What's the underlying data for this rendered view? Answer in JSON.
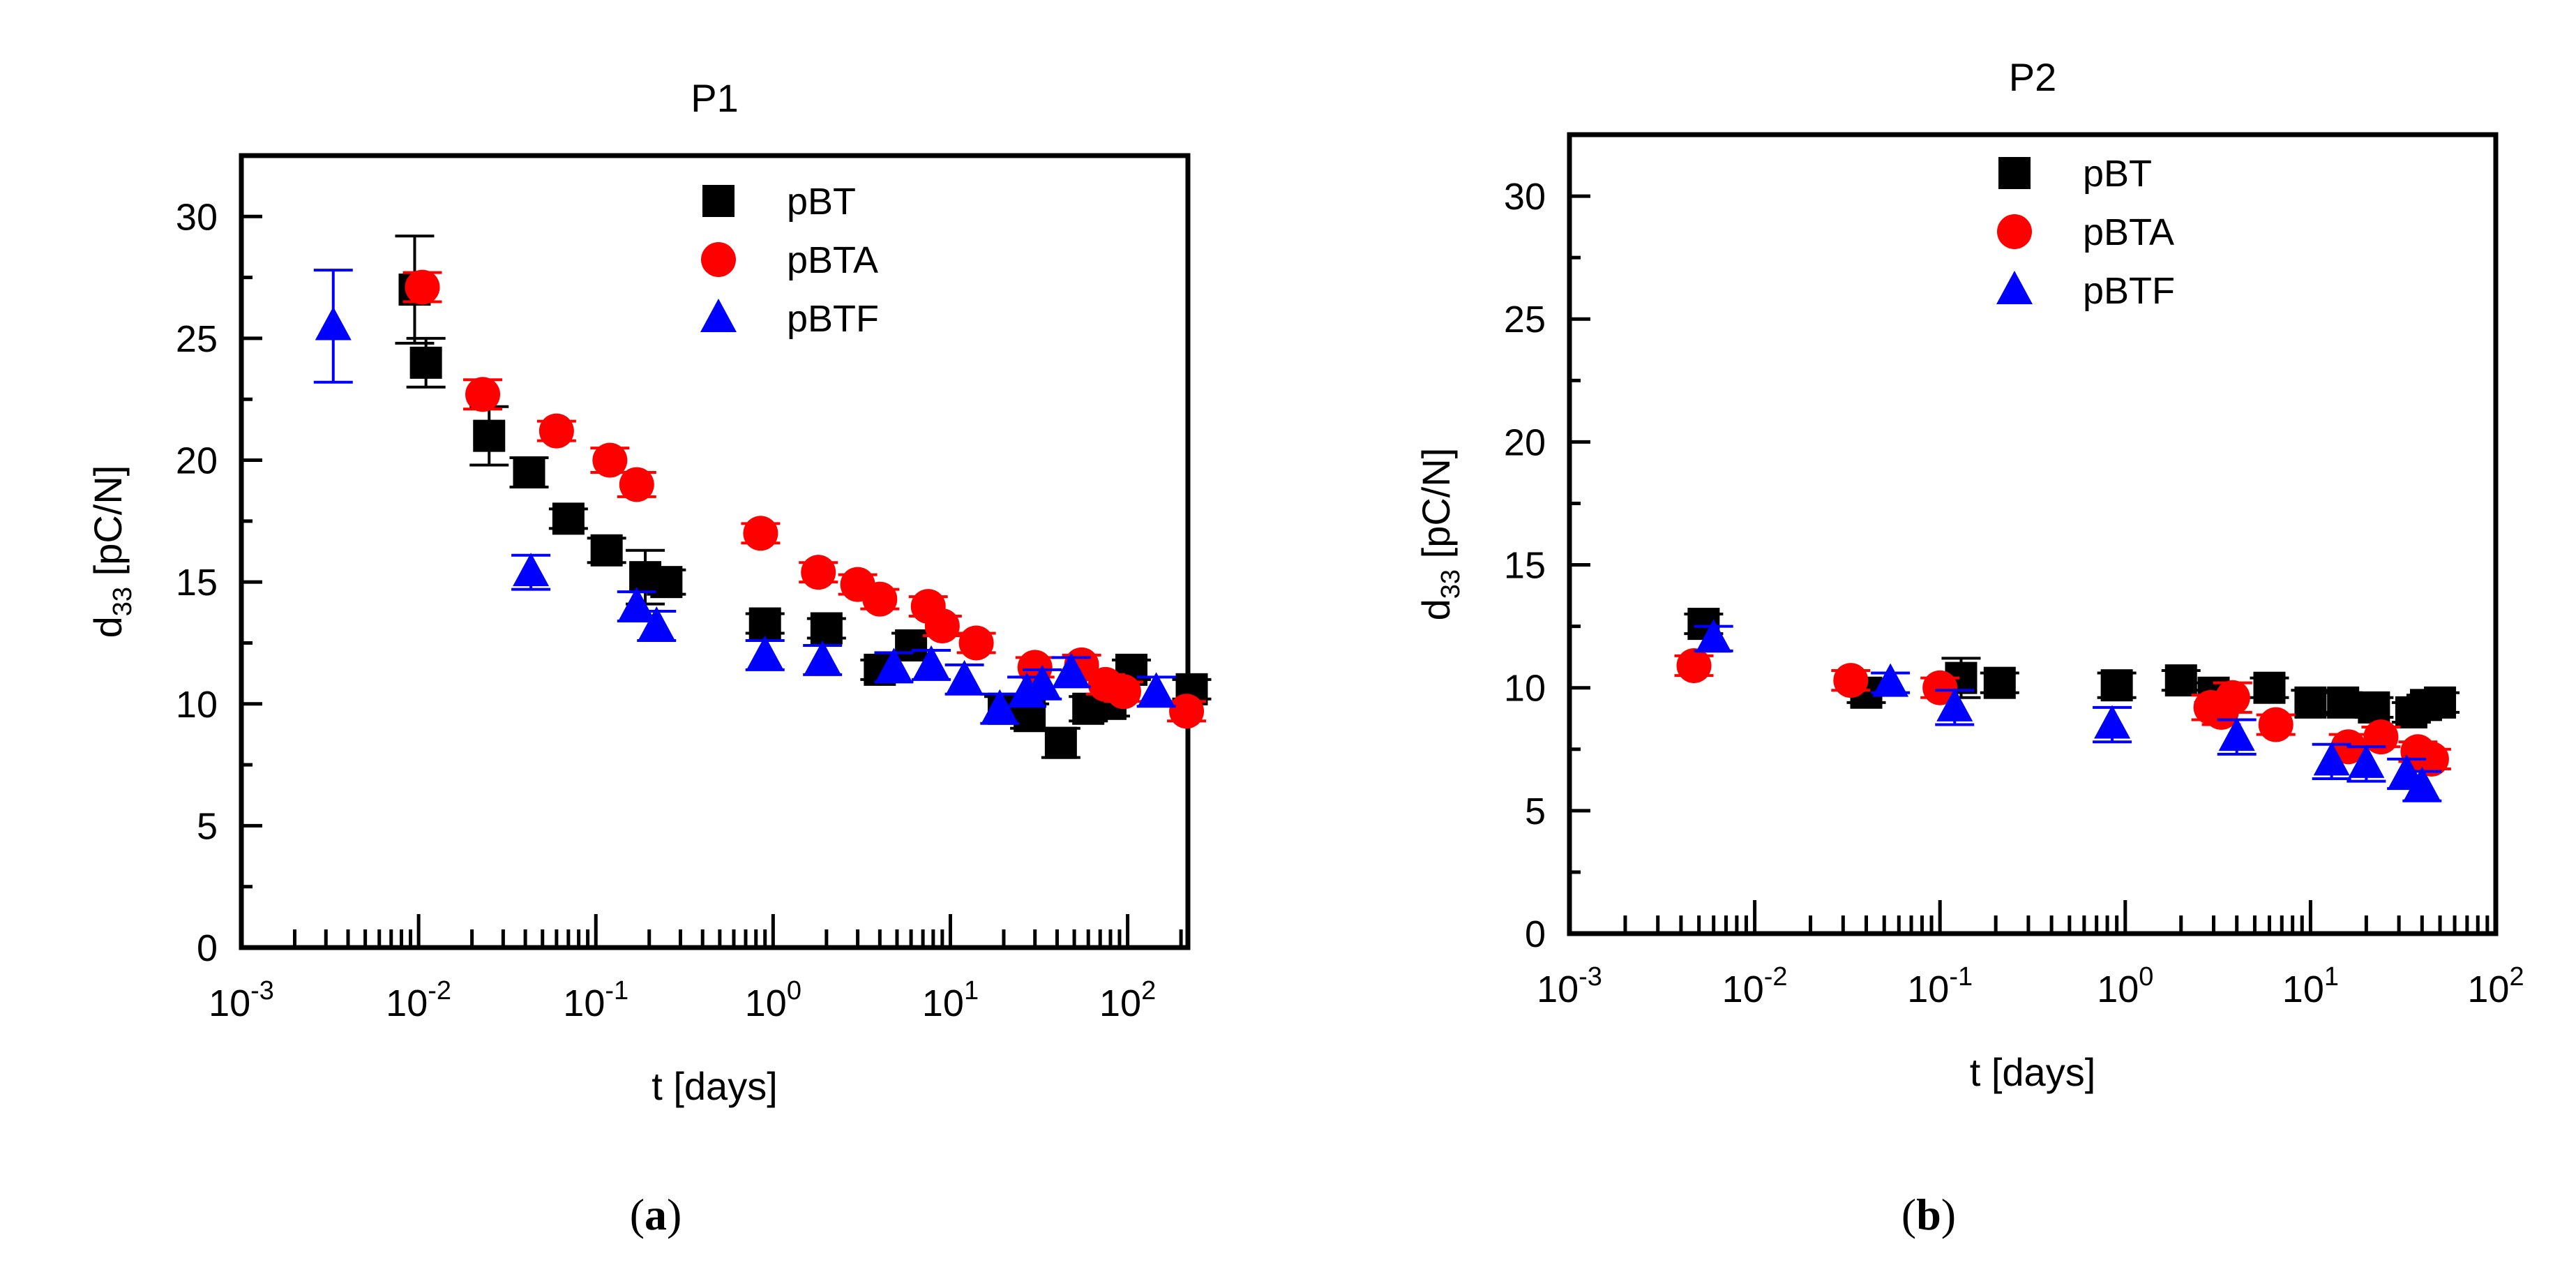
{
  "chart_data": [
    {
      "type": "scatter",
      "panel_label_prefix": "(",
      "panel_label_letter": "a",
      "panel_label_suffix": ")",
      "title": "P1",
      "xlabel": "t [days]",
      "ylabel_main": "d",
      "ylabel_sub": "33",
      "ylabel_unit": " [pC/N]",
      "x_scale": "log",
      "xlim_exp": [
        -3,
        2.34
      ],
      "ylim": [
        0,
        32.5
      ],
      "x_ticks": [
        {
          "base": "10",
          "exp": "-3"
        },
        {
          "base": "10",
          "exp": "-2"
        },
        {
          "base": "10",
          "exp": "-1"
        },
        {
          "base": "10",
          "exp": "0"
        },
        {
          "base": "10",
          "exp": "1"
        },
        {
          "base": "10",
          "exp": "2"
        }
      ],
      "y_ticks": [
        "0",
        "5",
        "10",
        "15",
        "20",
        "25",
        "30"
      ],
      "legend_position": "top-right",
      "series": [
        {
          "name": "pBT",
          "marker": "square",
          "color": "#000000",
          "points": [
            {
              "x": 0.0095,
              "y": 27.0,
              "err": 2.2
            },
            {
              "x": 0.011,
              "y": 24.0,
              "err": 1.0
            },
            {
              "x": 0.025,
              "y": 21.0,
              "err": 1.2
            },
            {
              "x": 0.042,
              "y": 19.5,
              "err": 0.6
            },
            {
              "x": 0.07,
              "y": 17.6,
              "err": 0.4
            },
            {
              "x": 0.115,
              "y": 16.3,
              "err": 0.5
            },
            {
              "x": 0.19,
              "y": 15.2,
              "err": 1.1
            },
            {
              "x": 0.25,
              "y": 15.0,
              "err": 0.5
            },
            {
              "x": 0.9,
              "y": 13.3,
              "err": 0.4
            },
            {
              "x": 2.0,
              "y": 13.1,
              "err": 0.4
            },
            {
              "x": 4.0,
              "y": 11.4,
              "err": 0.4
            },
            {
              "x": 6.0,
              "y": 12.4,
              "err": 0.5
            },
            {
              "x": 20.0,
              "y": 9.8,
              "err": 0.5
            },
            {
              "x": 28.0,
              "y": 9.5,
              "err": 0.5
            },
            {
              "x": 42.0,
              "y": 8.4,
              "err": 0.6
            },
            {
              "x": 60.0,
              "y": 9.8,
              "err": 0.5
            },
            {
              "x": 80.0,
              "y": 10.0,
              "err": 0.5
            },
            {
              "x": 105.0,
              "y": 11.4,
              "err": 0.4
            },
            {
              "x": 230.0,
              "y": 10.6,
              "err": 0.4
            }
          ]
        },
        {
          "name": "pBTA",
          "marker": "circle",
          "color": "#ff0000",
          "points": [
            {
              "x": 0.0105,
              "y": 27.1,
              "err": 0.6
            },
            {
              "x": 0.023,
              "y": 22.7,
              "err": 0.6
            },
            {
              "x": 0.06,
              "y": 21.2,
              "err": 0.4
            },
            {
              "x": 0.12,
              "y": 20.0,
              "err": 0.5
            },
            {
              "x": 0.17,
              "y": 19.0,
              "err": 0.5
            },
            {
              "x": 0.85,
              "y": 17.0,
              "err": 0.4
            },
            {
              "x": 1.8,
              "y": 15.4,
              "err": 0.4
            },
            {
              "x": 3.0,
              "y": 14.9,
              "err": 0.4
            },
            {
              "x": 4.0,
              "y": 14.3,
              "err": 0.4
            },
            {
              "x": 7.5,
              "y": 14.0,
              "err": 0.4
            },
            {
              "x": 9.0,
              "y": 13.2,
              "err": 0.4
            },
            {
              "x": 14.0,
              "y": 12.5,
              "err": 0.4
            },
            {
              "x": 30.0,
              "y": 11.5,
              "err": 0.4
            },
            {
              "x": 55.0,
              "y": 11.6,
              "err": 0.4
            },
            {
              "x": 75.0,
              "y": 10.8,
              "err": 0.4
            },
            {
              "x": 95.0,
              "y": 10.5,
              "err": 0.4
            },
            {
              "x": 215.0,
              "y": 9.7,
              "err": 0.4
            }
          ]
        },
        {
          "name": "pBTF",
          "marker": "triangle",
          "color": "#0000ff",
          "points": [
            {
              "x": 0.0033,
              "y": 25.5,
              "err": 2.3
            },
            {
              "x": 0.043,
              "y": 15.4,
              "err": 0.7
            },
            {
              "x": 0.17,
              "y": 14.0,
              "err": 0.6
            },
            {
              "x": 0.22,
              "y": 13.2,
              "err": 0.6
            },
            {
              "x": 0.9,
              "y": 12.0,
              "err": 0.6
            },
            {
              "x": 1.9,
              "y": 11.8,
              "err": 0.6
            },
            {
              "x": 4.8,
              "y": 11.5,
              "err": 0.6
            },
            {
              "x": 7.8,
              "y": 11.6,
              "err": 0.6
            },
            {
              "x": 12.0,
              "y": 11.0,
              "err": 0.6
            },
            {
              "x": 19.0,
              "y": 9.8,
              "err": 0.6
            },
            {
              "x": 27.0,
              "y": 10.5,
              "err": 0.6
            },
            {
              "x": 33.0,
              "y": 10.8,
              "err": 0.6
            },
            {
              "x": 48.0,
              "y": 11.3,
              "err": 0.6
            },
            {
              "x": 145.0,
              "y": 10.5,
              "err": 0.6
            }
          ]
        }
      ]
    },
    {
      "type": "scatter",
      "panel_label_prefix": "(",
      "panel_label_letter": "b",
      "panel_label_suffix": ")",
      "title": "P2",
      "xlabel": "t [days]",
      "ylabel_main": "d",
      "ylabel_sub": "33",
      "ylabel_unit": " [pC/N]",
      "x_scale": "log",
      "xlim_exp": [
        -3,
        2
      ],
      "ylim": [
        0,
        32.5
      ],
      "x_ticks": [
        {
          "base": "10",
          "exp": "-3"
        },
        {
          "base": "10",
          "exp": "-2"
        },
        {
          "base": "10",
          "exp": "-1"
        },
        {
          "base": "10",
          "exp": "0"
        },
        {
          "base": "10",
          "exp": "1"
        },
        {
          "base": "10",
          "exp": "2"
        }
      ],
      "y_ticks": [
        "0",
        "5",
        "10",
        "15",
        "20",
        "25",
        "30"
      ],
      "legend_position": "top-right",
      "series": [
        {
          "name": "pBT",
          "marker": "square",
          "color": "#000000",
          "points": [
            {
              "x": 0.0053,
              "y": 12.6,
              "err": 0.4
            },
            {
              "x": 0.04,
              "y": 9.8,
              "err": 0.4
            },
            {
              "x": 0.13,
              "y": 10.4,
              "err": 0.8
            },
            {
              "x": 0.21,
              "y": 10.2,
              "err": 0.4
            },
            {
              "x": 0.9,
              "y": 10.1,
              "err": 0.5
            },
            {
              "x": 2.0,
              "y": 10.3,
              "err": 0.4
            },
            {
              "x": 3.0,
              "y": 9.8,
              "err": 0.4
            },
            {
              "x": 6.0,
              "y": 10.0,
              "err": 0.4
            },
            {
              "x": 10.0,
              "y": 9.4,
              "err": 0.5
            },
            {
              "x": 15.0,
              "y": 9.4,
              "err": 0.4
            },
            {
              "x": 22.0,
              "y": 9.2,
              "err": 0.4
            },
            {
              "x": 35.0,
              "y": 9.0,
              "err": 0.4
            },
            {
              "x": 42.0,
              "y": 9.3,
              "err": 0.4
            },
            {
              "x": 50.0,
              "y": 9.4,
              "err": 0.4
            }
          ]
        },
        {
          "name": "pBTA",
          "marker": "circle",
          "color": "#ff0000",
          "points": [
            {
              "x": 0.0047,
              "y": 10.9,
              "err": 0.4
            },
            {
              "x": 0.033,
              "y": 10.3,
              "err": 0.4
            },
            {
              "x": 0.1,
              "y": 10.0,
              "err": 0.4
            },
            {
              "x": 2.9,
              "y": 9.2,
              "err": 0.5
            },
            {
              "x": 3.3,
              "y": 9.0,
              "err": 0.5
            },
            {
              "x": 3.8,
              "y": 9.6,
              "err": 0.6
            },
            {
              "x": 6.5,
              "y": 8.5,
              "err": 0.4
            },
            {
              "x": 16.0,
              "y": 7.6,
              "err": 0.5
            },
            {
              "x": 24.0,
              "y": 8.0,
              "err": 0.4
            },
            {
              "x": 38.0,
              "y": 7.4,
              "err": 0.4
            },
            {
              "x": 45.0,
              "y": 7.1,
              "err": 0.4
            }
          ]
        },
        {
          "name": "pBTF",
          "marker": "triangle",
          "color": "#0000ff",
          "points": [
            {
              "x": 0.006,
              "y": 12.0,
              "err": 0.5
            },
            {
              "x": 0.054,
              "y": 10.2,
              "err": 0.4
            },
            {
              "x": 0.12,
              "y": 9.2,
              "err": 0.7
            },
            {
              "x": 0.85,
              "y": 8.5,
              "err": 0.7
            },
            {
              "x": 4.0,
              "y": 8.0,
              "err": 0.7
            },
            {
              "x": 13.0,
              "y": 7.0,
              "err": 0.7
            },
            {
              "x": 20.0,
              "y": 6.9,
              "err": 0.7
            },
            {
              "x": 33.0,
              "y": 6.5,
              "err": 0.6
            },
            {
              "x": 40.0,
              "y": 6.0,
              "err": 0.6
            }
          ]
        }
      ]
    }
  ]
}
